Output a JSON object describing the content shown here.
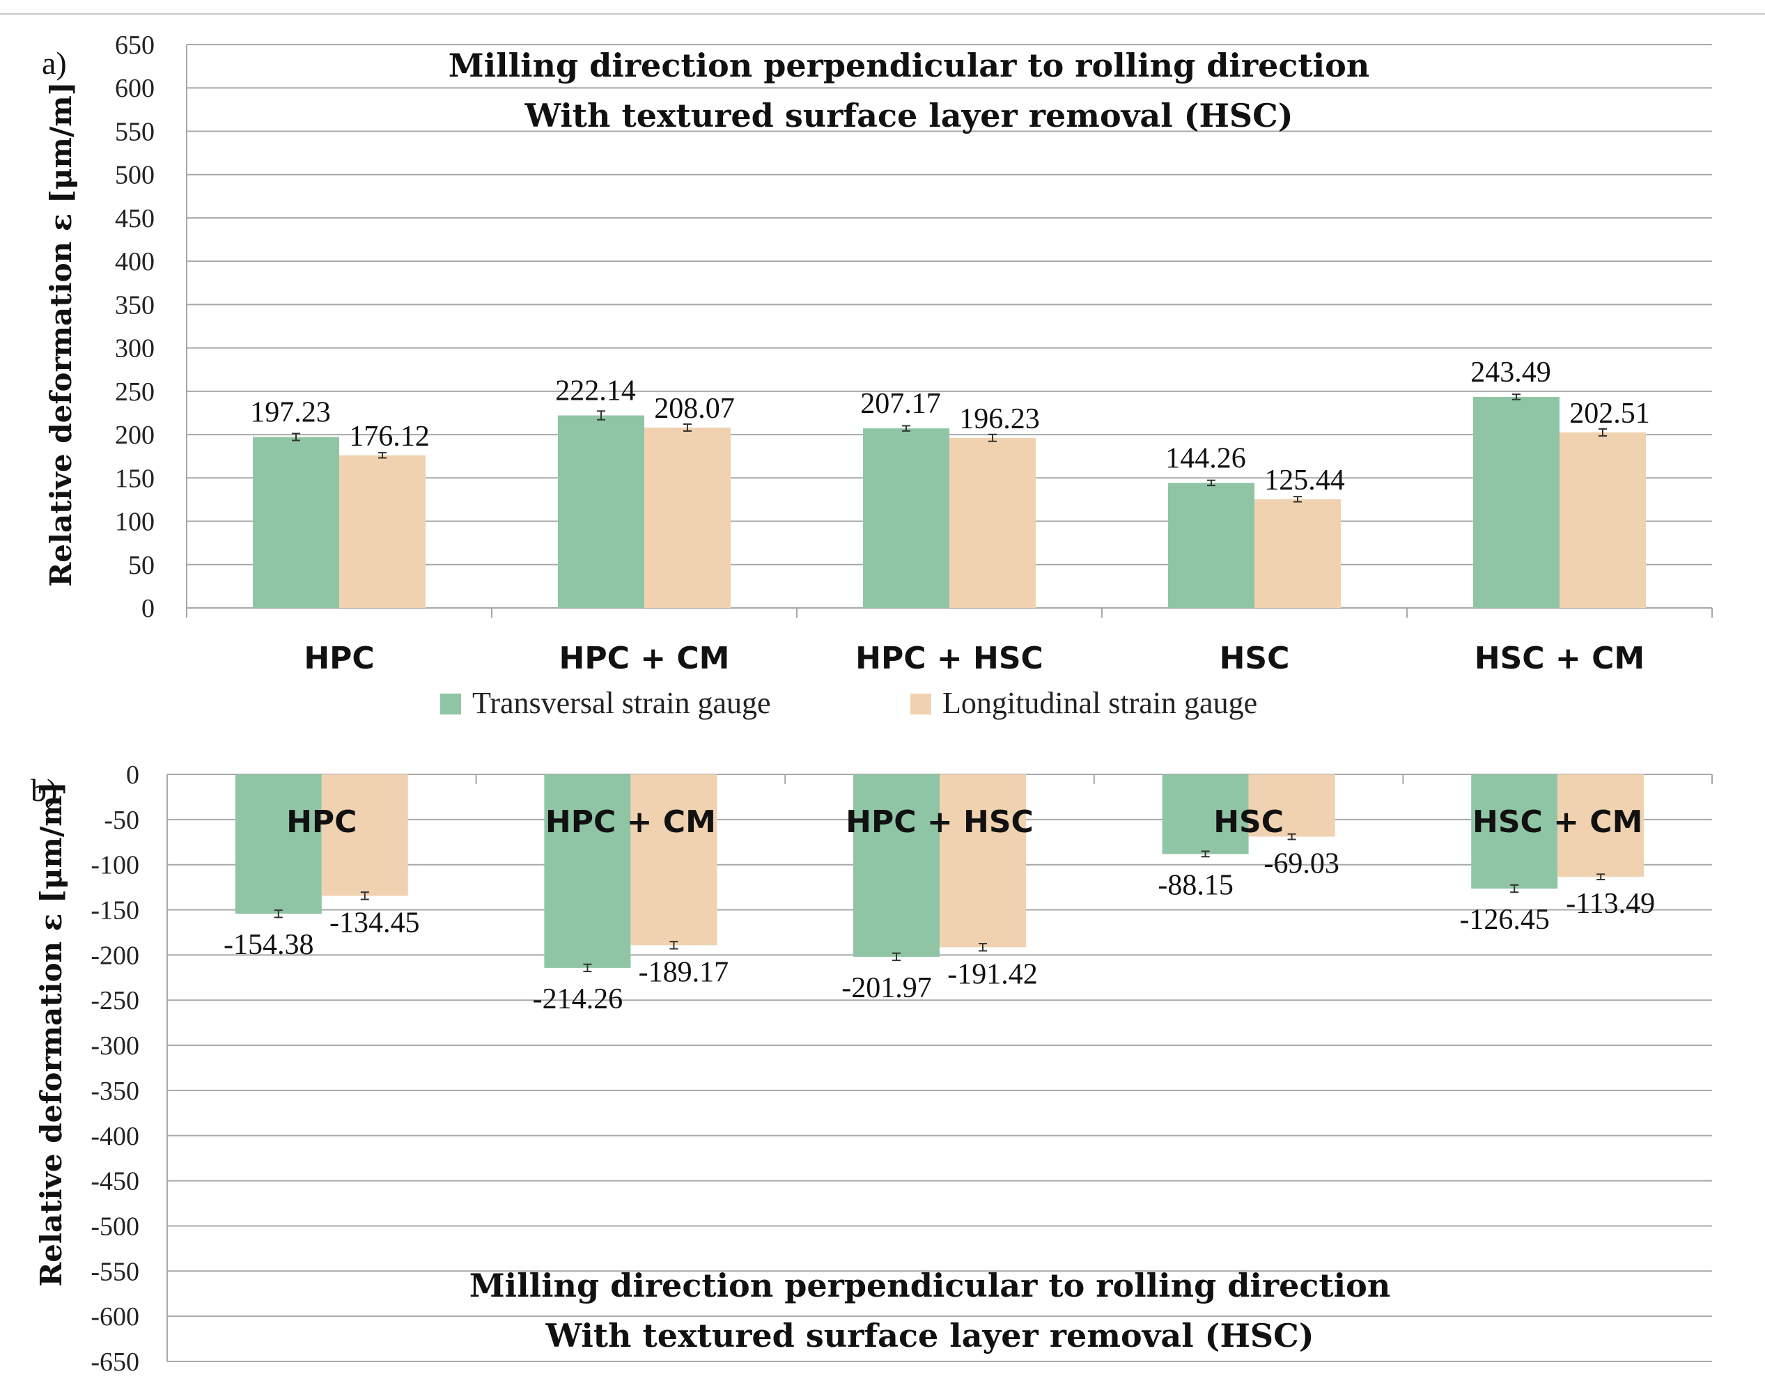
{
  "chart_data": [
    {
      "type": "bar",
      "panel_label": "a)",
      "title": "Milling direction perpendicular to rolling direction",
      "subtitle": "With textured surface layer removal (HSC)",
      "ylabel": "Relative deformation ε [μm/m]",
      "ylim": [
        0,
        650
      ],
      "yticks": [
        0,
        50,
        100,
        150,
        200,
        250,
        300,
        350,
        400,
        450,
        500,
        550,
        600,
        650
      ],
      "grid": true,
      "categories": [
        "HPC",
        "HPC + CM",
        "HPC + HSC",
        "HSC",
        "HSC + CM"
      ],
      "series": [
        {
          "name": "Transversal strain gauge",
          "color": "#8fc5a5",
          "values": [
            197.23,
            222.14,
            207.17,
            144.26,
            243.49
          ],
          "labels": [
            "197.23",
            "222.14",
            "207.17",
            "144.26",
            "243.49"
          ],
          "errors": [
            4,
            5,
            3,
            3,
            3
          ]
        },
        {
          "name": "Longitudinal strain gauge",
          "color": "#f0d2b0",
          "values": [
            176.12,
            208.07,
            196.23,
            125.44,
            202.51
          ],
          "labels": [
            "176.12",
            "208.07",
            "196.23",
            "125.44",
            "202.51"
          ],
          "errors": [
            3,
            4,
            4,
            3,
            4
          ]
        }
      ]
    },
    {
      "type": "bar",
      "panel_label": "b)",
      "title": "Milling direction perpendicular to rolling direction",
      "subtitle": "With textured surface layer removal (HSC)",
      "ylabel": "Relative deformation ε [μm/m]",
      "ylim": [
        -650,
        0
      ],
      "yticks": [
        0,
        -50,
        -100,
        -150,
        -200,
        -250,
        -300,
        -350,
        -400,
        -450,
        -500,
        -550,
        -600,
        -650
      ],
      "grid": true,
      "categories": [
        "HPC",
        "HPC + CM",
        "HPC + HSC",
        "HSC",
        "HSC + CM"
      ],
      "series": [
        {
          "name": "Transversal strain gauge",
          "color": "#8fc5a5",
          "values": [
            -154.38,
            -214.26,
            -201.97,
            -88.15,
            -126.45
          ],
          "labels": [
            "-154.38",
            "-214.26",
            "-201.97",
            "-88.15",
            "-126.45"
          ],
          "errors": [
            4,
            4,
            4,
            3,
            4
          ]
        },
        {
          "name": "Longitudinal strain gauge",
          "color": "#f0d2b0",
          "values": [
            -134.45,
            -189.17,
            -191.42,
            -69.03,
            -113.49
          ],
          "labels": [
            "-134.45",
            "-189.17",
            "-191.42",
            "-69.03",
            "-113.49"
          ],
          "errors": [
            4,
            4,
            4,
            3,
            3
          ]
        }
      ]
    }
  ],
  "legend": [
    {
      "label": "Transversal strain gauge",
      "color": "#8fc5a5"
    },
    {
      "label": "Longitudinal strain gauge",
      "color": "#f0d2b0"
    }
  ]
}
